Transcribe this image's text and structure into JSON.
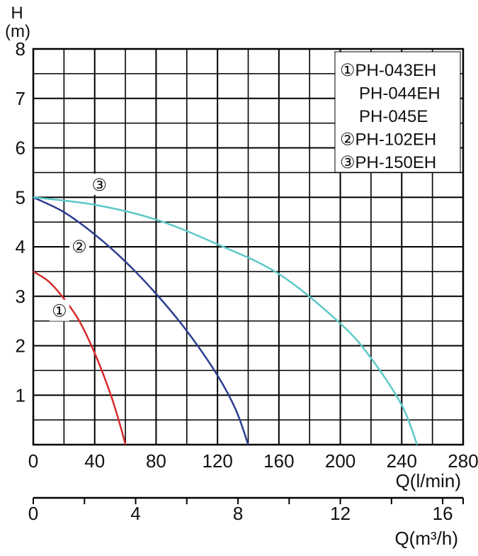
{
  "chart_data": {
    "type": "line",
    "y_axis": {
      "title_line1": "H",
      "title_line2": "(m)",
      "ylim": [
        0,
        8
      ],
      "tick_labels": [
        "1",
        "2",
        "3",
        "4",
        "5",
        "6",
        "7",
        "8"
      ],
      "tick_values": [
        1,
        2,
        3,
        4,
        5,
        6,
        7,
        8
      ],
      "minor_step": 0.5
    },
    "x_axis": {
      "title": "Q(l/min)",
      "xlim": [
        0,
        280
      ],
      "tick_labels": [
        "0",
        "40",
        "80",
        "120",
        "160",
        "200",
        "240",
        "280"
      ],
      "tick_values": [
        0,
        40,
        80,
        120,
        160,
        200,
        240,
        280
      ],
      "minor_step": 20
    },
    "x_axis_secondary": {
      "title": "Q(m³/h)",
      "xlim": [
        0,
        16.8
      ],
      "tick_labels": [
        "0",
        "4",
        "8",
        "12",
        "16"
      ],
      "tick_values": [
        0,
        4,
        8,
        12,
        16
      ],
      "minor_step": 2
    },
    "grid": true,
    "legend": {
      "placement": "top-right",
      "entries": [
        "①PH-043EH",
        "PH-044EH",
        "PH-045E",
        "②PH-102EH",
        "③PH-150EH"
      ]
    },
    "series": [
      {
        "label": "①",
        "color": "#d62a2a",
        "x": [
          0,
          10,
          20,
          30,
          40,
          50,
          57,
          60
        ],
        "y": [
          3.5,
          3.3,
          2.95,
          2.5,
          1.85,
          1.05,
          0.35,
          0
        ]
      },
      {
        "label": "②",
        "color": "#2b3d8f",
        "x": [
          0,
          20,
          40,
          60,
          80,
          100,
          120,
          132,
          140
        ],
        "y": [
          5.0,
          4.7,
          4.25,
          3.7,
          3.05,
          2.3,
          1.4,
          0.7,
          0
        ]
      },
      {
        "label": "③",
        "color": "#5ec8c8",
        "x": [
          0,
          40,
          80,
          120,
          160,
          200,
          220,
          240,
          250
        ],
        "y": [
          5.0,
          4.85,
          4.55,
          4.05,
          3.45,
          2.45,
          1.75,
          0.8,
          0
        ]
      }
    ],
    "curve_labels": [
      {
        "text": "①",
        "x": 17,
        "y": 2.7
      },
      {
        "text": "②",
        "x": 30,
        "y": 4.0
      },
      {
        "text": "③",
        "x": 43,
        "y": 5.25
      }
    ]
  }
}
